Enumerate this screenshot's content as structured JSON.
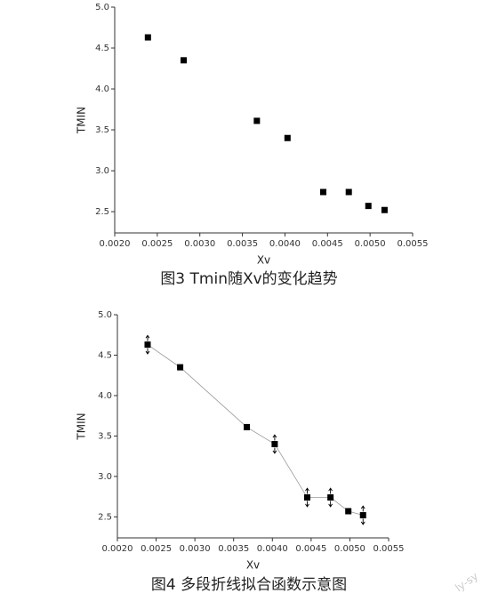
{
  "chart_data": [
    {
      "type": "scatter",
      "xlabel": "Xv",
      "ylabel": "TMIN",
      "caption": "图3 Tmin随Xv的变化趋势",
      "x": [
        0.00239,
        0.00281,
        0.00367,
        0.00403,
        0.00445,
        0.00475,
        0.00498,
        0.00517
      ],
      "values": [
        4.63,
        4.35,
        3.61,
        3.4,
        2.74,
        2.74,
        2.57,
        2.52
      ],
      "color": "#000000",
      "xlim": [
        0.002,
        0.0055
      ],
      "xticks": [
        {
          "value": 0.002,
          "label": "0.0020"
        },
        {
          "value": 0.0025,
          "label": "0.0025"
        },
        {
          "value": 0.003,
          "label": "0.0030"
        },
        {
          "value": 0.0035,
          "label": "0.0035"
        },
        {
          "value": 0.004,
          "label": "0.0040"
        },
        {
          "value": 0.0045,
          "label": "0.0045"
        },
        {
          "value": 0.005,
          "label": "0.0050"
        },
        {
          "value": 0.0055,
          "label": "0.0055"
        }
      ],
      "ylim": [
        2.24,
        5.0
      ],
      "yticks": [
        2.5,
        {
          "value": 3,
          "label": "3.0"
        },
        3.5,
        {
          "value": 4,
          "label": "4.0"
        },
        4.5,
        {
          "value": 5,
          "label": "5.0"
        }
      ]
    },
    {
      "type": "line",
      "xlabel": "Xv",
      "ylabel": "TMIN",
      "caption": "图4 多段折线拟合函数示意图",
      "watermark": "ly-sy",
      "x": [
        0.00239,
        0.00281,
        0.00367,
        0.00403,
        0.00445,
        0.00475,
        0.00498,
        0.00517
      ],
      "values": [
        4.63,
        4.35,
        3.61,
        3.4,
        2.74,
        2.74,
        2.57,
        2.52
      ],
      "errors": [
        0.07,
        null,
        null,
        0.07,
        0.07,
        0.07,
        null,
        0.07
      ],
      "color": "#000000",
      "xlim": [
        0.002,
        0.0055
      ],
      "xticks": [
        {
          "value": 0.002,
          "label": "0.0020"
        },
        {
          "value": 0.0025,
          "label": "0.0025"
        },
        {
          "value": 0.003,
          "label": "0.0030"
        },
        {
          "value": 0.0035,
          "label": "0.0035"
        },
        {
          "value": 0.004,
          "label": "0.0040"
        },
        {
          "value": 0.0045,
          "label": "0.0045"
        },
        {
          "value": 0.005,
          "label": "0.0050"
        },
        {
          "value": 0.0055,
          "label": "0.0055"
        }
      ],
      "ylim": [
        2.24,
        5.0
      ],
      "yticks": [
        2.5,
        {
          "value": 3,
          "label": "3.0"
        },
        3.5,
        {
          "value": 4,
          "label": "4.0"
        },
        4.5,
        {
          "value": 5,
          "label": "5.0"
        }
      ]
    }
  ]
}
